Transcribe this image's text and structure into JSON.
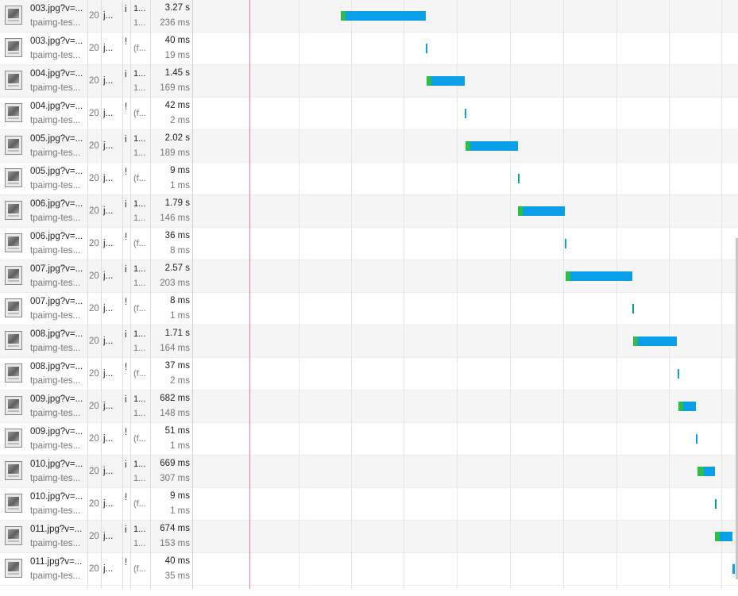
{
  "colors": {
    "waiting": "#2fbd4a",
    "receiving": "#0a9fe8",
    "cached": "#00a88a",
    "load_marker": "#e8818c"
  },
  "rows": [
    {
      "name": "003.jpg?v=...",
      "domain": "tpaimg-tes...",
      "status": "20",
      "type": "j...",
      "initiator": "i",
      "size_top": "1...",
      "size_bottom": "1...",
      "time_top": "3.27 s",
      "time_bottom": "236 ms",
      "start_ms": 0,
      "wait_ms": 236,
      "total_ms": 3270,
      "cached": false
    },
    {
      "name": "003.jpg?v=...",
      "domain": "tpaimg-tes...",
      "status": "20",
      "type": "j...",
      "initiator": "!",
      "size_top": "(f...",
      "size_bottom": "",
      "time_top": "40 ms",
      "time_bottom": "19 ms",
      "start_ms": 3270,
      "wait_ms": 19,
      "total_ms": 40,
      "cached": true
    },
    {
      "name": "004.jpg?v=...",
      "domain": "tpaimg-tes...",
      "status": "20",
      "type": "j...",
      "initiator": "i",
      "size_top": "1...",
      "size_bottom": "1...",
      "time_top": "1.45 s",
      "time_bottom": "169 ms",
      "start_ms": 3310,
      "wait_ms": 169,
      "total_ms": 1450,
      "cached": false
    },
    {
      "name": "004.jpg?v=...",
      "domain": "tpaimg-tes...",
      "status": "20",
      "type": "j...",
      "initiator": "!",
      "size_top": "(f...",
      "size_bottom": "",
      "time_top": "42 ms",
      "time_bottom": "2 ms",
      "start_ms": 4760,
      "wait_ms": 2,
      "total_ms": 42,
      "cached": true
    },
    {
      "name": "005.jpg?v=...",
      "domain": "tpaimg-tes...",
      "status": "20",
      "type": "j...",
      "initiator": "i",
      "size_top": "1...",
      "size_bottom": "1...",
      "time_top": "2.02 s",
      "time_bottom": "189 ms",
      "start_ms": 4800,
      "wait_ms": 189,
      "total_ms": 2020,
      "cached": false
    },
    {
      "name": "005.jpg?v=...",
      "domain": "tpaimg-tes...",
      "status": "20",
      "type": "j...",
      "initiator": "!",
      "size_top": "(f...",
      "size_bottom": "",
      "time_top": "9 ms",
      "time_bottom": "1 ms",
      "start_ms": 6820,
      "wait_ms": 1,
      "total_ms": 9,
      "cached": true
    },
    {
      "name": "006.jpg?v=...",
      "domain": "tpaimg-tes...",
      "status": "20",
      "type": "j...",
      "initiator": "i",
      "size_top": "1...",
      "size_bottom": "1...",
      "time_top": "1.79 s",
      "time_bottom": "146 ms",
      "start_ms": 6830,
      "wait_ms": 146,
      "total_ms": 1790,
      "cached": false
    },
    {
      "name": "006.jpg?v=...",
      "domain": "tpaimg-tes...",
      "status": "20",
      "type": "j...",
      "initiator": "!",
      "size_top": "(f...",
      "size_bottom": "",
      "time_top": "36 ms",
      "time_bottom": "8 ms",
      "start_ms": 8620,
      "wait_ms": 8,
      "total_ms": 36,
      "cached": true
    },
    {
      "name": "007.jpg?v=...",
      "domain": "tpaimg-tes...",
      "status": "20",
      "type": "j...",
      "initiator": "i",
      "size_top": "1...",
      "size_bottom": "1...",
      "time_top": "2.57 s",
      "time_bottom": "203 ms",
      "start_ms": 8660,
      "wait_ms": 203,
      "total_ms": 2570,
      "cached": false
    },
    {
      "name": "007.jpg?v=...",
      "domain": "tpaimg-tes...",
      "status": "20",
      "type": "j...",
      "initiator": "!",
      "size_top": "(f...",
      "size_bottom": "",
      "time_top": "8 ms",
      "time_bottom": "1 ms",
      "start_ms": 11230,
      "wait_ms": 1,
      "total_ms": 8,
      "cached": true
    },
    {
      "name": "008.jpg?v=...",
      "domain": "tpaimg-tes...",
      "status": "20",
      "type": "j...",
      "initiator": "i",
      "size_top": "1...",
      "size_bottom": "1...",
      "time_top": "1.71 s",
      "time_bottom": "164 ms",
      "start_ms": 11240,
      "wait_ms": 164,
      "total_ms": 1710,
      "cached": false
    },
    {
      "name": "008.jpg?v=...",
      "domain": "tpaimg-tes...",
      "status": "20",
      "type": "j...",
      "initiator": "!",
      "size_top": "(f...",
      "size_bottom": "",
      "time_top": "37 ms",
      "time_bottom": "2 ms",
      "start_ms": 12950,
      "wait_ms": 2,
      "total_ms": 37,
      "cached": true
    },
    {
      "name": "009.jpg?v=...",
      "domain": "tpaimg-tes...",
      "status": "20",
      "type": "j...",
      "initiator": "i",
      "size_top": "1...",
      "size_bottom": "1...",
      "time_top": "682 ms",
      "time_bottom": "148 ms",
      "start_ms": 12990,
      "wait_ms": 148,
      "total_ms": 682,
      "cached": false
    },
    {
      "name": "009.jpg?v=...",
      "domain": "tpaimg-tes...",
      "status": "20",
      "type": "j...",
      "initiator": "!",
      "size_top": "(f...",
      "size_bottom": "",
      "time_top": "51 ms",
      "time_bottom": "1 ms",
      "start_ms": 13680,
      "wait_ms": 1,
      "total_ms": 51,
      "cached": true
    },
    {
      "name": "010.jpg?v=...",
      "domain": "tpaimg-tes...",
      "status": "20",
      "type": "j...",
      "initiator": "i",
      "size_top": "1...",
      "size_bottom": "1...",
      "time_top": "669 ms",
      "time_bottom": "307 ms",
      "start_ms": 13730,
      "wait_ms": 307,
      "total_ms": 669,
      "cached": false
    },
    {
      "name": "010.jpg?v=...",
      "domain": "tpaimg-tes...",
      "status": "20",
      "type": "j...",
      "initiator": "!",
      "size_top": "(f...",
      "size_bottom": "",
      "time_top": "9 ms",
      "time_bottom": "1 ms",
      "start_ms": 14400,
      "wait_ms": 1,
      "total_ms": 9,
      "cached": true
    },
    {
      "name": "011.jpg?v=...",
      "domain": "tpaimg-tes...",
      "status": "20",
      "type": "j...",
      "initiator": "i",
      "size_top": "1...",
      "size_bottom": "1...",
      "time_top": "674 ms",
      "time_bottom": "153 ms",
      "start_ms": 14410,
      "wait_ms": 153,
      "total_ms": 674,
      "cached": false
    },
    {
      "name": "011.jpg?v=...",
      "domain": "tpaimg-tes...",
      "status": "20",
      "type": "j...",
      "initiator": "!",
      "size_top": "(f...",
      "size_bottom": "",
      "time_top": "40 ms",
      "time_bottom": "35 ms",
      "start_ms": 15090,
      "wait_ms": 35,
      "total_ms": 40,
      "cached": true
    }
  ]
}
